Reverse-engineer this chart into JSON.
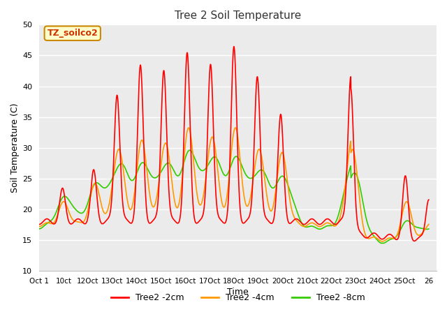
{
  "title": "Tree 2 Soil Temperature",
  "xlabel": "Time",
  "ylabel": "Soil Temperature (C)",
  "ylim": [
    10,
    50
  ],
  "annotation_text": "TZ_soilco2",
  "annotation_bg": "#ffffcc",
  "annotation_border": "#cc8800",
  "bg_color": "#ebebeb",
  "grid_color": "#ffffff",
  "xtick_labels": [
    "Oct 1",
    "10ct",
    "12Oct",
    "13Oct",
    "14Oct",
    "15Oct",
    "16Oct",
    "17Oct",
    "18Oct",
    "19Oct",
    "20Oct",
    "21Oct",
    "22Oct",
    "23Oct",
    "24Oct",
    "25Oct",
    "26"
  ],
  "series_colors": [
    "#ff0000",
    "#ff9900",
    "#33cc00"
  ],
  "series_labels": [
    "Tree2 -2cm",
    "Tree2 -4cm",
    "Tree2 -8cm"
  ]
}
